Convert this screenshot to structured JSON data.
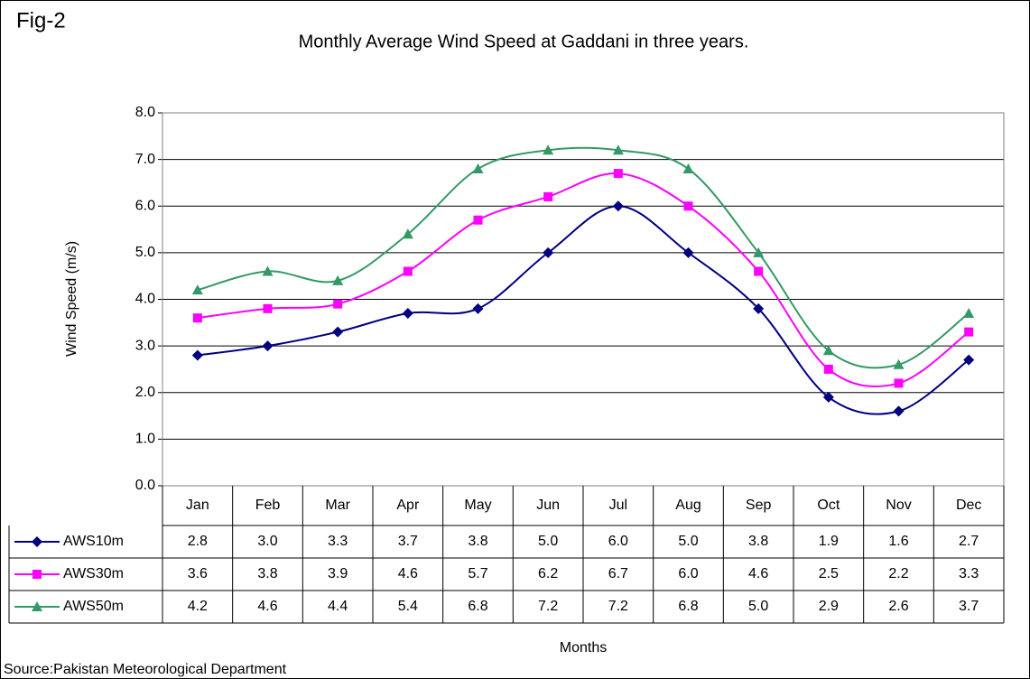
{
  "chart_data": {
    "type": "line",
    "figure_label": "Fig-2",
    "title": "Monthly Average Wind Speed at Gaddani in three years.",
    "y_label": "Wind Speed (m/s)",
    "x_label": "Months",
    "source": "Source:Pakistan Meteorological Department",
    "categories": [
      "Jan",
      "Feb",
      "Mar",
      "Apr",
      "May",
      "Jun",
      "Jul",
      "Aug",
      "Sep",
      "Oct",
      "Nov",
      "Dec"
    ],
    "series": [
      {
        "name": "AWS10m",
        "color": "#000080",
        "marker": "diamond",
        "values": [
          2.8,
          3.0,
          3.3,
          3.7,
          3.8,
          5.0,
          6.0,
          5.0,
          3.8,
          1.9,
          1.6,
          2.7
        ],
        "value_labels": [
          "2.8",
          "3.0",
          "3.3",
          "3.7",
          "3.8",
          "5.0",
          "6.0",
          "5.0",
          "3.8",
          "1.9",
          "1.6",
          "2.7"
        ]
      },
      {
        "name": "AWS30m",
        "color": "#ff00ff",
        "marker": "square",
        "values": [
          3.6,
          3.8,
          3.9,
          4.6,
          5.7,
          6.2,
          6.7,
          6.0,
          4.6,
          2.5,
          2.2,
          3.3
        ],
        "value_labels": [
          "3.6",
          "3.8",
          "3.9",
          "4.6",
          "5.7",
          "6.2",
          "6.7",
          "6.0",
          "4.6",
          "2.5",
          "2.2",
          "3.3"
        ]
      },
      {
        "name": "AWS50m",
        "color": "#339966",
        "marker": "triangle",
        "values": [
          4.2,
          4.6,
          4.4,
          5.4,
          6.8,
          7.2,
          7.2,
          6.8,
          5.0,
          2.9,
          2.6,
          3.7
        ],
        "value_labels": [
          "4.2",
          "4.6",
          "4.4",
          "5.4",
          "6.8",
          "7.2",
          "7.2",
          "6.8",
          "5.0",
          "2.9",
          "2.6",
          "3.7"
        ]
      }
    ],
    "ylim": [
      0,
      8
    ],
    "yticks": [
      {
        "value": 0,
        "label": "0.0"
      },
      {
        "value": 1,
        "label": "1.0"
      },
      {
        "value": 2,
        "label": "2.0"
      },
      {
        "value": 3,
        "label": "3.0"
      },
      {
        "value": 4,
        "label": "4.0"
      },
      {
        "value": 5,
        "label": "5.0"
      },
      {
        "value": 6,
        "label": "6.0"
      },
      {
        "value": 7,
        "label": "7.0"
      },
      {
        "value": 8,
        "label": "8.0"
      }
    ],
    "grid": true,
    "smooth": true
  }
}
